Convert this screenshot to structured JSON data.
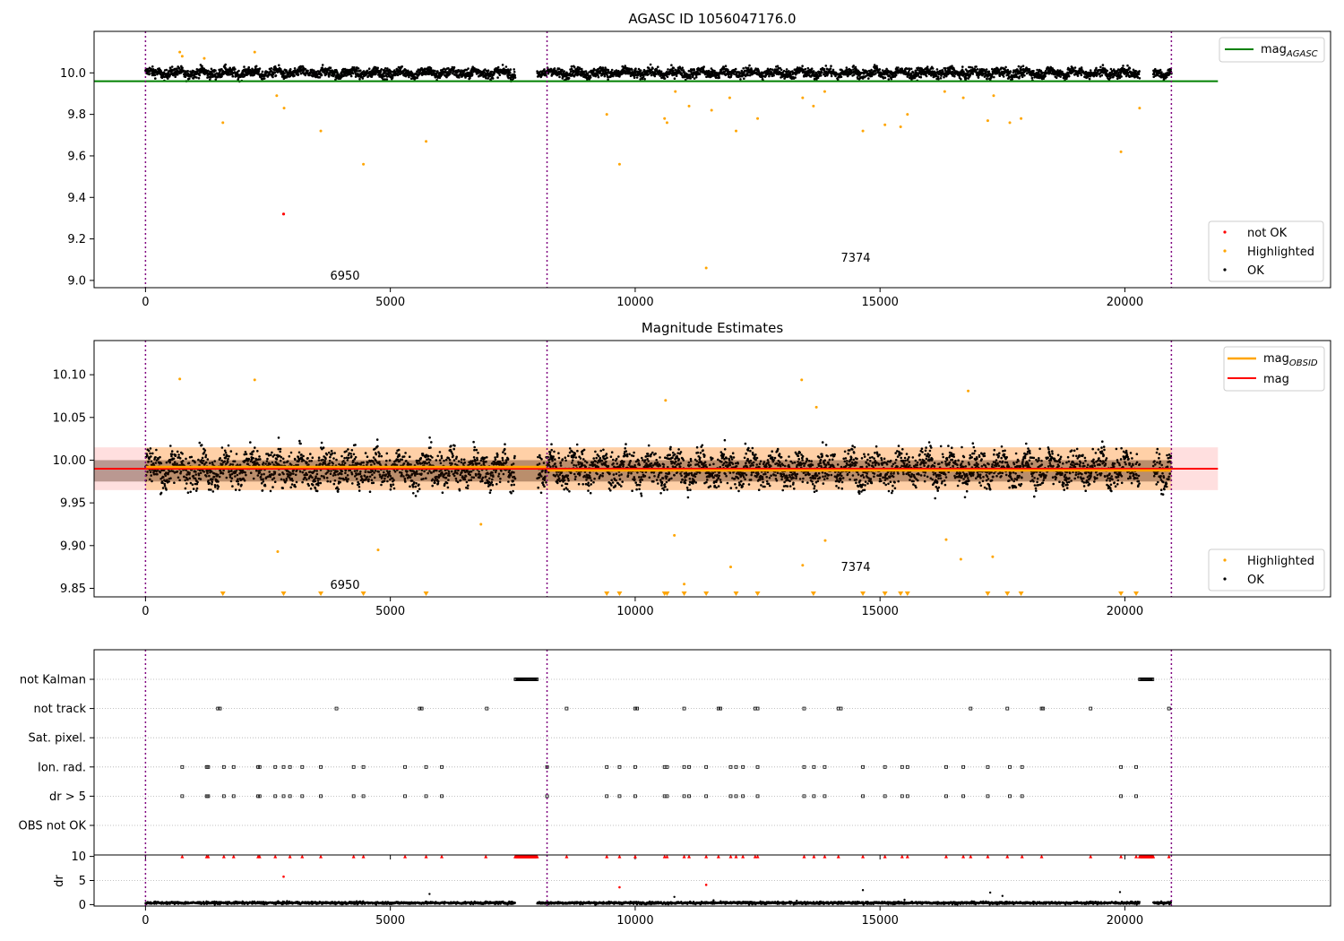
{
  "chart_data": [
    {
      "type": "scatter",
      "title": "AGASC ID 1056047176.0",
      "xlabel": "",
      "ylabel": "",
      "xlim": [
        -1050,
        24200
      ],
      "ylim": [
        8.965,
        10.2
      ],
      "xticks": [
        0,
        5000,
        10000,
        15000,
        20000
      ],
      "yticks": [
        9.0,
        9.2,
        9.4,
        9.6,
        9.8,
        10.0
      ],
      "ytick_labels": [
        "9.0",
        "9.2",
        "9.4",
        "9.6",
        "9.8",
        "10.0"
      ],
      "obs_boundaries": [
        0,
        8200,
        20950
      ],
      "obs_labels": [
        {
          "text": "6950",
          "x": 4100,
          "y": 9.02
        },
        {
          "text": "7374",
          "x": 14600,
          "y": 9.1
        }
      ],
      "hline": {
        "name": "mag_AGASC",
        "value": 9.96,
        "color": "#008000"
      },
      "series": [
        {
          "name": "not OK",
          "color": "#ff0000",
          "points": [
            [
              2820,
              9.32
            ]
          ]
        },
        {
          "name": "Highlighted",
          "color": "#ffa500",
          "points": [
            [
              1580,
              9.76
            ],
            [
              2680,
              9.89
            ],
            [
              2830,
              9.83
            ],
            [
              3580,
              9.72
            ],
            [
              4450,
              9.56
            ],
            [
              5730,
              9.67
            ],
            [
              9420,
              9.8
            ],
            [
              9680,
              9.56
            ],
            [
              10600,
              9.78
            ],
            [
              10650,
              9.76
            ],
            [
              10820,
              9.91
            ],
            [
              11100,
              9.84
            ],
            [
              11450,
              9.06
            ],
            [
              11560,
              9.82
            ],
            [
              11930,
              9.88
            ],
            [
              12060,
              9.72
            ],
            [
              12500,
              9.78
            ],
            [
              13420,
              9.88
            ],
            [
              13640,
              9.84
            ],
            [
              13870,
              9.91
            ],
            [
              14650,
              9.72
            ],
            [
              15100,
              9.75
            ],
            [
              15420,
              9.74
            ],
            [
              15560,
              9.8
            ],
            [
              16320,
              9.91
            ],
            [
              16700,
              9.88
            ],
            [
              17200,
              9.77
            ],
            [
              17320,
              9.89
            ],
            [
              17650,
              9.76
            ],
            [
              17880,
              9.78
            ],
            [
              19920,
              9.62
            ],
            [
              20300,
              9.83
            ],
            [
              700,
              10.1
            ],
            [
              2230,
              10.1
            ],
            [
              750,
              10.08
            ],
            [
              1200,
              10.07
            ]
          ]
        },
        {
          "name": "OK",
          "color": "#000000",
          "segments": [
            [
              0,
              7550
            ],
            [
              8000,
              20300
            ],
            [
              20580,
              20950
            ]
          ],
          "mean": 10.0,
          "spread": 0.025,
          "period": 510
        }
      ],
      "legend": {
        "upper_right": [
          "mag_AGASC"
        ],
        "lower_right": [
          "not OK",
          "Highlighted",
          "OK"
        ]
      }
    },
    {
      "type": "scatter",
      "title": "Magnitude Estimates",
      "xlabel": "",
      "ylabel": "",
      "xlim": [
        -1050,
        24200
      ],
      "ylim": [
        9.84,
        10.14
      ],
      "xticks": [
        0,
        5000,
        10000,
        15000,
        20000
      ],
      "yticks": [
        9.85,
        9.9,
        9.95,
        10.0,
        10.05,
        10.1
      ],
      "ytick_labels": [
        "9.85",
        "9.90",
        "9.95",
        "10.00",
        "10.05",
        "10.10"
      ],
      "obs_boundaries": [
        0,
        8200,
        20950
      ],
      "obs_labels": [
        {
          "text": "6950",
          "x": 4100,
          "y": 9.856
        },
        {
          "text": "7374",
          "x": 14600,
          "y": 9.878
        }
      ],
      "mag": {
        "value": 9.99,
        "band": [
          9.965,
          10.015
        ],
        "color": "#ff0000"
      },
      "mag_obsid": [
        {
          "x": [
            0,
            8200
          ],
          "value": 9.992
        },
        {
          "x": [
            8200,
            20950
          ],
          "value": 9.988
        }
      ],
      "series": [
        {
          "name": "Highlighted",
          "color": "#ffa500",
          "points": [
            [
              2700,
              9.893
            ],
            [
              4750,
              9.895
            ],
            [
              6850,
              9.925
            ],
            [
              10800,
              9.912
            ],
            [
              11950,
              9.875
            ],
            [
              11000,
              9.855
            ],
            [
              13420,
              9.877
            ],
            [
              13880,
              9.906
            ],
            [
              16350,
              9.907
            ],
            [
              16650,
              9.884
            ],
            [
              17300,
              9.887
            ],
            [
              700,
              10.095
            ],
            [
              2230,
              10.094
            ],
            [
              10620,
              10.07
            ],
            [
              13400,
              10.094
            ],
            [
              13700,
              10.062
            ],
            [
              16800,
              10.081
            ]
          ]
        },
        {
          "name": "OK",
          "color": "#000000",
          "segments": [
            [
              0,
              7550
            ],
            [
              8000,
              20300
            ],
            [
              20580,
              20950
            ]
          ],
          "mean": 9.99,
          "spread": 0.022,
          "period": 510
        }
      ],
      "lower_markers_x": [
        1580,
        2820,
        3580,
        4450,
        5730,
        9420,
        9680,
        10600,
        10650,
        11000,
        11450,
        12060,
        12500,
        13640,
        14650,
        15100,
        15420,
        15560,
        17200,
        17600,
        17880,
        19920,
        20230
      ],
      "legend": {
        "upper_right": [
          "mag_OBSID",
          "mag"
        ],
        "lower_right": [
          "Highlighted",
          "OK"
        ]
      }
    },
    {
      "type": "scatter",
      "title": "",
      "xlabel": "",
      "ylabel": "",
      "xlim": [
        -1050,
        24200
      ],
      "xticks": [
        0,
        5000,
        10000,
        15000,
        20000
      ],
      "obs_boundaries": [
        0,
        8200,
        20950
      ],
      "categories": [
        "not Kalman",
        "not track",
        "Sat. pixel.",
        "Ion. rad.",
        "dr > 5",
        "OBS not OK"
      ],
      "flags": {
        "not Kalman": {
          "ranges": [
            [
              7550,
              8000
            ],
            [
              20300,
              20580
            ]
          ]
        },
        "not track": {
          "x": [
            1480,
            1520,
            3900,
            5600,
            5640,
            6970,
            8600,
            10000,
            10040,
            11000,
            11700,
            11740,
            12450,
            12500,
            13450,
            14150,
            14200,
            16850,
            17600,
            18300,
            18330,
            19300,
            20900
          ]
        },
        "Sat. pixel.": {
          "x": []
        },
        "Ion. rad.": {
          "x": [
            750,
            1250,
            1280,
            1600,
            1800,
            2300,
            2330,
            2650,
            2820,
            2950,
            3200,
            3580,
            4250,
            4450,
            5300,
            5730,
            6050,
            8200,
            9420,
            9680,
            10000,
            10600,
            10650,
            11000,
            11100,
            11450,
            11950,
            12060,
            12200,
            12500,
            13450,
            13650,
            13870,
            14650,
            15100,
            15450,
            15560,
            16350,
            16700,
            17200,
            17650,
            17900,
            19920,
            20230
          ]
        },
        "dr > 5": {
          "x": [
            750,
            1250,
            1280,
            1600,
            1800,
            2300,
            2330,
            2650,
            2820,
            2950,
            3200,
            3580,
            4250,
            4450,
            5300,
            5730,
            6050,
            8200,
            9420,
            9680,
            10000,
            10600,
            10650,
            11000,
            11100,
            11450,
            11950,
            12060,
            12200,
            12500,
            13450,
            13650,
            13870,
            14650,
            15100,
            15450,
            15560,
            16350,
            16700,
            17200,
            17650,
            17900,
            19920,
            20230
          ]
        },
        "OBS not OK": {
          "x": []
        }
      }
    },
    {
      "type": "scatter",
      "title": "",
      "xlabel": "",
      "ylabel": "dr",
      "xlim": [
        -1050,
        24200
      ],
      "ylim": [
        -0.3,
        10.3
      ],
      "xticks": [
        0,
        5000,
        10000,
        15000,
        20000
      ],
      "yticks": [
        0,
        5,
        10
      ],
      "ytick_labels": [
        "0",
        "5",
        "10"
      ],
      "obs_boundaries": [
        0,
        8200,
        20950
      ],
      "series": [
        {
          "name": "dr",
          "color": "#000000",
          "segments": [
            [
              0,
              7550
            ],
            [
              8000,
              20300
            ],
            [
              20580,
              20950
            ]
          ],
          "mean": 0.35,
          "spread": 0.25
        },
        {
          "name": "dr outliers",
          "color": "#000000",
          "points": [
            [
              5800,
              2.2
            ],
            [
              10800,
              1.6
            ],
            [
              11600,
              0.9
            ],
            [
              13300,
              0.8
            ],
            [
              14650,
              3.0
            ],
            [
              15500,
              1.0
            ],
            [
              17250,
              2.5
            ],
            [
              17500,
              1.8
            ],
            [
              19900,
              2.6
            ]
          ]
        },
        {
          "name": "dr > 10",
          "color": "#ff0000",
          "x": [
            750,
            1250,
            1280,
            1600,
            1800,
            2300,
            2330,
            2650,
            2950,
            3200,
            3580,
            4250,
            4450,
            5300,
            5730,
            6050,
            6950,
            8600,
            9420,
            9680,
            10000,
            10600,
            10650,
            11000,
            11100,
            11450,
            11700,
            11950,
            12060,
            12200,
            12450,
            12500,
            13450,
            13650,
            13870,
            14150,
            14650,
            15100,
            15450,
            15560,
            16350,
            16700,
            16850,
            17200,
            17600,
            17900,
            18300,
            19300,
            19920,
            20230,
            20900
          ],
          "ranges": [
            [
              7550,
              8000
            ],
            [
              20300,
              20580
            ]
          ]
        },
        {
          "name": "dr highlighted",
          "color": "#ff0000",
          "points": [
            [
              2820,
              5.8
            ],
            [
              9680,
              3.6
            ],
            [
              11450,
              4.1
            ]
          ]
        }
      ]
    }
  ]
}
